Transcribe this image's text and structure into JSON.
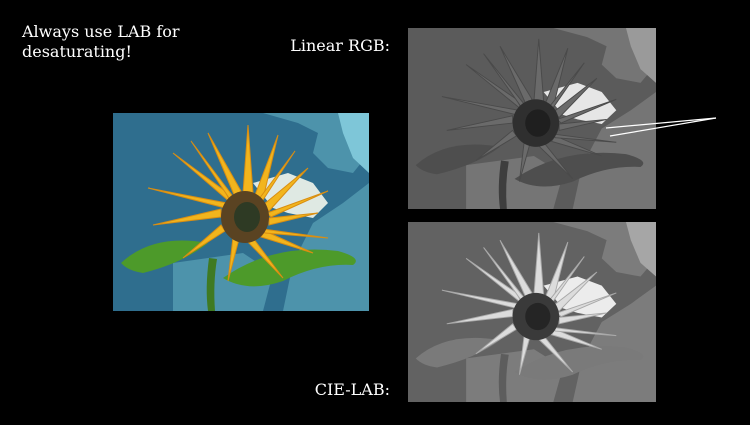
{
  "slide": {
    "headline_line1": "Always use LAB for",
    "headline_line2": "desaturating!",
    "label_linear_rgb": "Linear RGB:",
    "label_cie_lab": "CIE-LAB:"
  },
  "images": {
    "color": {
      "subject": "sunflower",
      "mode": "color"
    },
    "linear_rgb": {
      "subject": "sunflower",
      "mode": "grayscale-linear-rgb"
    },
    "cie_lab": {
      "subject": "sunflower",
      "mode": "grayscale-cie-lab"
    }
  },
  "colors": {
    "background": "#000000",
    "text": "#ffffff",
    "sky_dark": "#2f6e8e",
    "sky_light": "#7ec6d8",
    "cloud": "#dfe9e3",
    "petal": "#f2b51d",
    "petal_dark": "#d98e12",
    "center": "#4a3a1e",
    "leaf": "#4d9a2a",
    "stem": "#3f7a22"
  }
}
